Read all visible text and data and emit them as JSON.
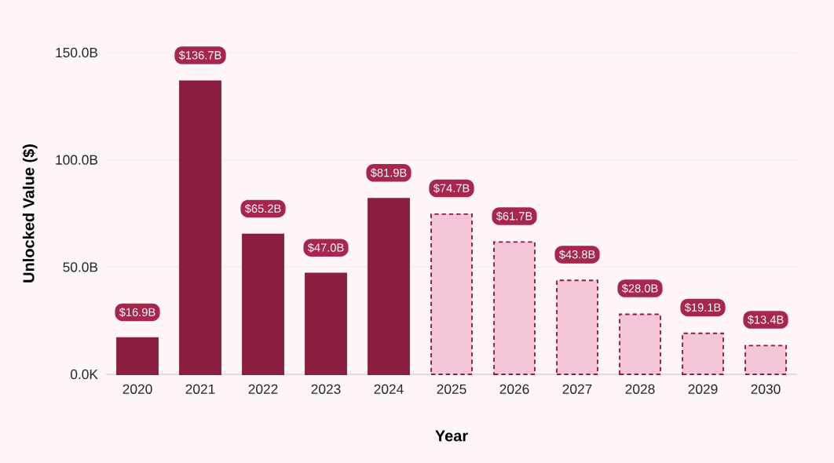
{
  "chart_data": {
    "type": "bar",
    "xlabel": "Year",
    "ylabel": "Unlocked Value ($)",
    "categories": [
      "2020",
      "2021",
      "2022",
      "2023",
      "2024",
      "2025",
      "2026",
      "2027",
      "2028",
      "2029",
      "2030"
    ],
    "series": [
      {
        "color": "#8b1e3f",
        "line_style": "solid",
        "values": [
          16.9,
          136.7,
          65.2,
          47.0,
          81.9,
          null,
          null,
          null,
          null,
          null,
          null
        ],
        "value_labels": [
          "$16.9B",
          "$136.7B",
          "$65.2B",
          "$47.0B",
          "$81.9B",
          null,
          null,
          null,
          null,
          null,
          null
        ]
      },
      {
        "color": "#f4c4d8",
        "line_style": "dashed",
        "values": [
          null,
          null,
          null,
          null,
          null,
          74.7,
          61.7,
          43.8,
          28.0,
          19.1,
          13.4
        ],
        "value_labels": [
          null,
          null,
          null,
          null,
          null,
          "$74.7B",
          "$61.7B",
          "$43.8B",
          "$28.0B",
          "$19.1B",
          "$13.4B"
        ]
      }
    ],
    "ylim": [
      0,
      150
    ],
    "yticks": [
      {
        "value": 0,
        "label": "0.0K"
      },
      {
        "value": 50,
        "label": "50.0B"
      },
      {
        "value": 100,
        "label": "100.0B"
      },
      {
        "value": 150,
        "label": "150.0B"
      }
    ],
    "grid": "y"
  }
}
